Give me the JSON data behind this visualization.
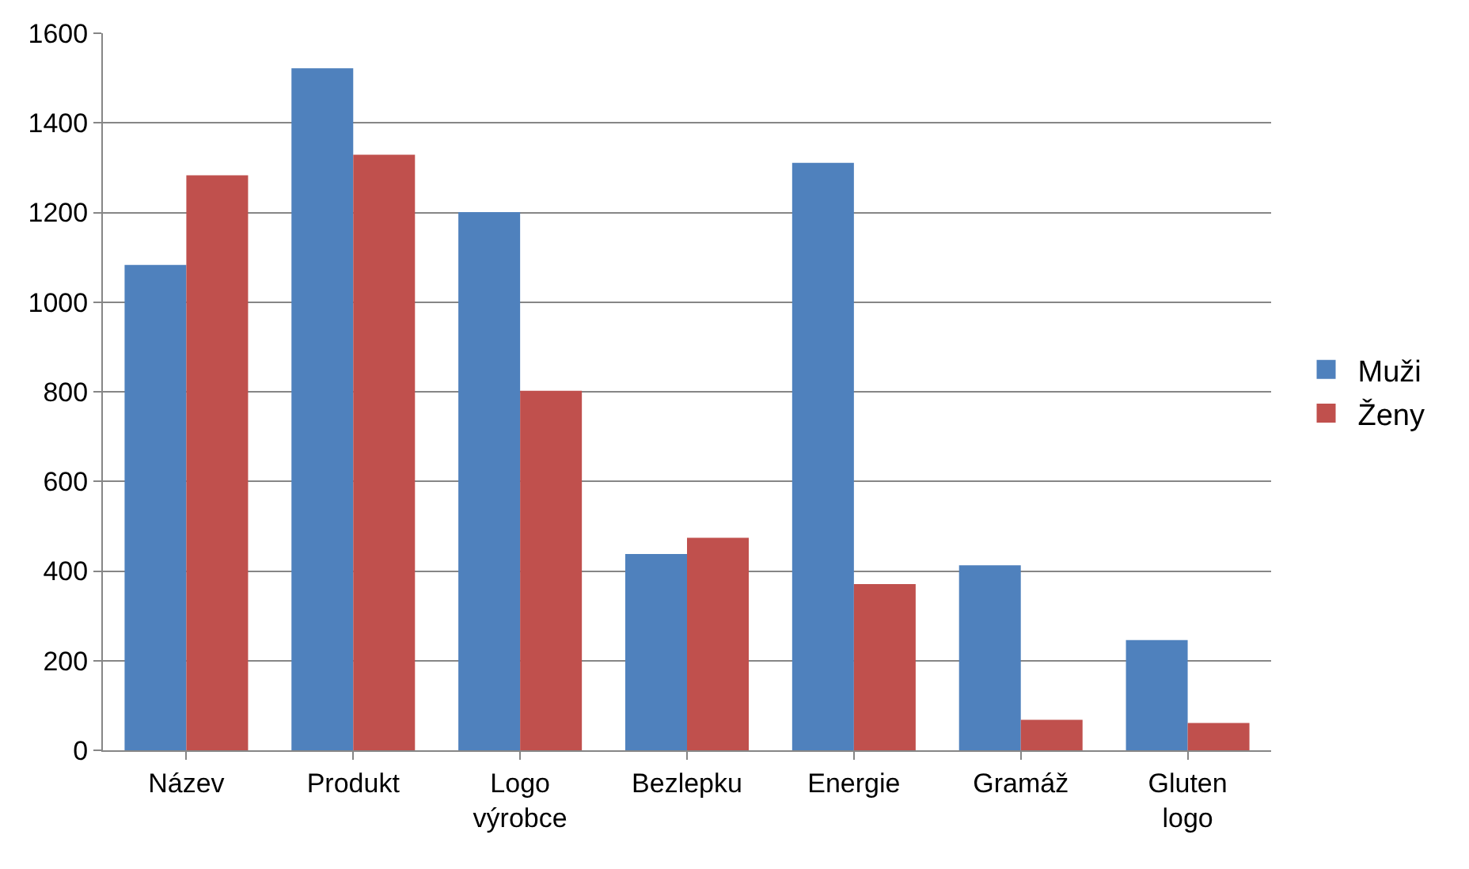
{
  "chart_data": {
    "type": "bar",
    "categories": [
      "Název",
      "Produkt",
      "Logo výrobce",
      "Bezlepku",
      "Energie",
      "Gramáž",
      "Gluten logo"
    ],
    "series": [
      {
        "name": "Muži",
        "color": "#4f81bd",
        "values": [
          1083,
          1522,
          1201,
          438,
          1311,
          413,
          246
        ]
      },
      {
        "name": "Ženy",
        "color": "#c0504d",
        "values": [
          1283,
          1329,
          802,
          474,
          371,
          68,
          61
        ]
      }
    ],
    "ylim": [
      0,
      1600
    ],
    "yticks": [
      0,
      200,
      400,
      600,
      800,
      1000,
      1200,
      1400,
      1600
    ],
    "grid": "y",
    "legend": "right"
  }
}
